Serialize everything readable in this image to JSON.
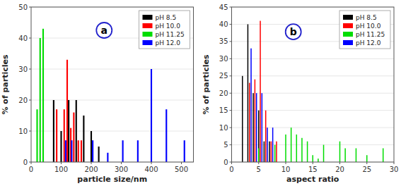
{
  "chart_data": [
    {
      "type": "bar",
      "xlabel": "particle size/nm",
      "ylabel": "% of particles",
      "xlim": [
        0,
        540
      ],
      "ylim": [
        0,
        50
      ],
      "xticks": [
        0,
        100,
        200,
        300,
        400,
        500
      ],
      "yticks": [
        0,
        10,
        20,
        30,
        40,
        50
      ],
      "legend": "upper right",
      "annotation": "a",
      "series": [
        {
          "name": "pH  8.5",
          "color": "#000000",
          "x": [
            75,
            100,
            125,
            150,
            175,
            200,
            225
          ],
          "values": [
            20,
            10,
            20,
            20,
            15,
            10,
            5
          ]
        },
        {
          "name": "pH  10.0",
          "color": "#ff0000",
          "x": [
            85,
            110,
            120,
            132,
            142,
            157,
            167
          ],
          "values": [
            17,
            17,
            33,
            11,
            16,
            7,
            7
          ]
        },
        {
          "name": "pH  11.25",
          "color": "#00dd00",
          "x": [
            20,
            30,
            40
          ],
          "values": [
            17,
            40,
            43
          ]
        },
        {
          "name": "pH  12.0",
          "color": "#0000ff",
          "x": [
            115,
            135,
            205,
            255,
            305,
            355,
            400,
            450,
            510
          ],
          "values": [
            7,
            7,
            7,
            3,
            7,
            7,
            30,
            17,
            7
          ]
        }
      ]
    },
    {
      "type": "bar",
      "xlabel": "aspect ratio",
      "ylabel": "% of particles",
      "xlim": [
        0,
        30
      ],
      "ylim": [
        0,
        45
      ],
      "xticks": [
        0,
        5,
        10,
        15,
        20,
        25,
        30
      ],
      "yticks": [
        0,
        5,
        10,
        15,
        20,
        25,
        30,
        35,
        40,
        45
      ],
      "legend": "upper right",
      "annotation": "b",
      "series": [
        {
          "name": "pH  8.5",
          "color": "#000000",
          "x": [
            2,
            3,
            4,
            5,
            6,
            7
          ],
          "values": [
            25,
            40,
            20,
            15,
            6,
            6
          ]
        },
        {
          "name": "pH  10.0",
          "color": "#ff0000",
          "x": [
            3.3,
            4.3,
            5.3,
            6.3,
            7.3,
            8.3
          ],
          "values": [
            23,
            24,
            41,
            15,
            6,
            6
          ]
        },
        {
          "name": "pH  11.25",
          "color": "#00dd00",
          "x": [
            5,
            8,
            10,
            11,
            12,
            13,
            14,
            15,
            16,
            17,
            20,
            21,
            23,
            25,
            28
          ],
          "values": [
            4,
            5,
            8,
            10,
            8,
            7,
            6,
            2,
            1,
            5,
            6,
            4,
            4,
            2,
            4
          ]
        },
        {
          "name": "pH  12.0",
          "color": "#0000ff",
          "x": [
            3.6,
            4.6,
            5.6,
            6.6,
            7.6
          ],
          "values": [
            33,
            20,
            20,
            10,
            10
          ]
        }
      ]
    }
  ]
}
